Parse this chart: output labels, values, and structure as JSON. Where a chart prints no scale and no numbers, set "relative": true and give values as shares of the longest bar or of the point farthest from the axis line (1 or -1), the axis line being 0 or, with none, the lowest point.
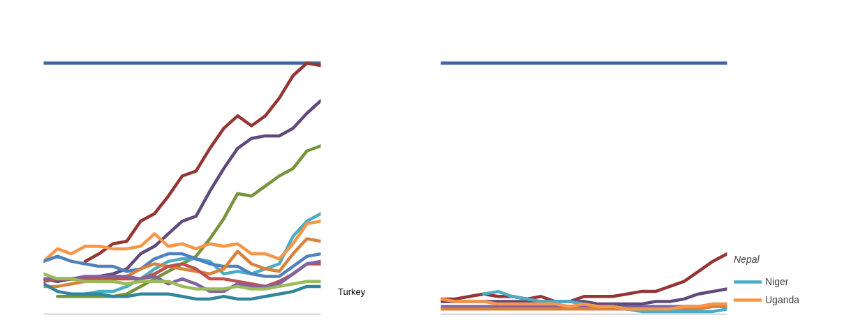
{
  "chart_data": [
    {
      "type": "line",
      "relative": true,
      "categories": [
        null,
        null,
        null,
        null,
        null,
        null,
        null,
        null,
        null,
        null,
        null,
        null,
        null,
        null,
        null,
        null,
        null,
        null,
        null,
        null,
        null
      ],
      "legend": false,
      "annotations": [
        "Turkey"
      ],
      "series": [
        {
          "color": "#3f67a0",
          "values": [
            1,
            1,
            1,
            1,
            1,
            1,
            1,
            1,
            1,
            1,
            1,
            1,
            1,
            1,
            1,
            1,
            1,
            1,
            1,
            1,
            1
          ]
        },
        {
          "color": "#943634",
          "values": [
            null,
            null,
            null,
            0.21,
            0.24,
            0.28,
            0.29,
            0.37,
            0.4,
            0.47,
            0.55,
            0.57,
            0.66,
            0.74,
            0.79,
            0.75,
            0.79,
            0.86,
            0.95,
            1.0,
            0.99
          ]
        },
        {
          "color": "#604a7b",
          "values": [
            0.14,
            0.13,
            0.14,
            0.14,
            0.15,
            0.16,
            0.18,
            0.24,
            0.27,
            0.32,
            0.37,
            0.39,
            0.49,
            0.58,
            0.66,
            0.7,
            0.71,
            0.71,
            0.74,
            0.8,
            0.85
          ]
        },
        {
          "color": "#77933c",
          "values": [
            null,
            0.07,
            0.07,
            0.07,
            0.07,
            0.07,
            0.08,
            0.11,
            0.14,
            0.17,
            0.2,
            0.23,
            0.3,
            0.38,
            0.48,
            0.47,
            0.51,
            0.55,
            0.58,
            0.65,
            0.67
          ]
        },
        {
          "color": "#4bacc6",
          "values": [
            null,
            null,
            null,
            0.08,
            0.09,
            0.09,
            0.11,
            0.14,
            0.18,
            0.21,
            0.22,
            0.22,
            0.21,
            0.16,
            0.17,
            0.16,
            0.18,
            0.2,
            0.31,
            0.37,
            0.4
          ]
        },
        {
          "color": "#f79646",
          "values": [
            0.21,
            0.26,
            0.24,
            0.27,
            0.27,
            0.26,
            0.26,
            0.27,
            0.32,
            0.27,
            0.28,
            0.26,
            0.28,
            0.27,
            0.28,
            0.24,
            0.24,
            0.22,
            0.28,
            0.36,
            0.37
          ]
        },
        {
          "color": "#4f81bd",
          "values": [
            0.21,
            0.23,
            0.21,
            0.2,
            0.19,
            0.19,
            0.17,
            0.18,
            0.22,
            0.24,
            0.24,
            0.22,
            0.2,
            0.19,
            0.19,
            0.16,
            0.15,
            0.15,
            0.19,
            0.23,
            0.24
          ]
        },
        {
          "color": "#d9823b",
          "values": [
            0.11,
            0.11,
            0.12,
            0.13,
            0.13,
            0.14,
            0.15,
            0.18,
            0.2,
            0.19,
            0.18,
            0.17,
            0.16,
            0.18,
            0.25,
            0.2,
            0.18,
            0.17,
            0.24,
            0.3,
            0.29
          ]
        },
        {
          "color": "#c0504d",
          "values": [
            0.13,
            0.14,
            0.14,
            0.14,
            0.14,
            0.14,
            0.14,
            0.14,
            0.16,
            0.19,
            0.2,
            0.18,
            0.14,
            0.14,
            0.13,
            0.12,
            0.11,
            0.13,
            0.16,
            0.2,
            0.2
          ]
        },
        {
          "color": "#8064a2",
          "values": [
            0.14,
            0.14,
            0.14,
            0.15,
            0.15,
            0.15,
            0.15,
            0.14,
            0.15,
            0.12,
            0.14,
            0.12,
            0.09,
            0.09,
            0.12,
            0.11,
            0.11,
            0.12,
            0.16,
            0.2,
            0.21
          ]
        },
        {
          "color": "#9bbb59",
          "values": [
            0.16,
            0.14,
            0.14,
            0.13,
            0.13,
            0.13,
            0.12,
            0.13,
            0.13,
            0.13,
            0.11,
            0.1,
            0.1,
            0.1,
            0.11,
            0.1,
            0.1,
            0.11,
            0.12,
            0.13,
            0.13
          ]
        },
        {
          "color": "#31859c",
          "values": [
            0.12,
            0.09,
            0.08,
            0.08,
            0.08,
            0.07,
            0.07,
            0.08,
            0.08,
            0.08,
            0.07,
            0.06,
            0.06,
            0.07,
            0.06,
            0.06,
            0.07,
            0.08,
            0.09,
            0.11,
            0.11
          ]
        }
      ]
    },
    {
      "type": "line",
      "relative": true,
      "categories": [
        null,
        null,
        null,
        null,
        null,
        null,
        null,
        null,
        null,
        null,
        null,
        null,
        null,
        null,
        null,
        null,
        null,
        null,
        null,
        null,
        null
      ],
      "legend": "right",
      "legend_title": "Nepal",
      "series": [
        {
          "color": "#3f67a0",
          "values": [
            1,
            1,
            1,
            1,
            1,
            1,
            1,
            1,
            1,
            1,
            1,
            1,
            1,
            1,
            1,
            1,
            1,
            1,
            1,
            1,
            1
          ]
        },
        {
          "color": "#8064a2",
          "values": [
            0.03,
            0.03,
            0.03,
            0.03,
            0.03,
            0.03,
            0.03,
            0.03,
            0.03,
            0.03,
            0.03,
            0.03,
            0.03,
            0.03,
            0.03,
            0.03,
            0.03,
            0.03,
            0.03,
            null,
            null
          ]
        },
        {
          "color": "#943634",
          "values": [
            0.06,
            0.06,
            0.07,
            0.08,
            0.07,
            0.07,
            0.06,
            0.07,
            0.05,
            0.05,
            0.07,
            0.07,
            0.07,
            0.08,
            0.09,
            0.09,
            0.11,
            0.13,
            0.17,
            0.21,
            0.24
          ]
        },
        {
          "color": "#604a7b",
          "values": [
            0.05,
            0.05,
            0.05,
            0.05,
            0.05,
            0.05,
            0.05,
            0.05,
            0.05,
            0.05,
            0.05,
            0.04,
            0.04,
            0.04,
            0.04,
            0.05,
            0.05,
            0.06,
            0.08,
            0.09,
            0.1
          ]
        },
        {
          "color": "#d9823b",
          "values": [
            0.02,
            0.02,
            0.02,
            0.02,
            0.02,
            0.02,
            0.02,
            0.02,
            0.02,
            0.02,
            0.02,
            0.02,
            0.02,
            0.02,
            0.02,
            0.02,
            0.02,
            0.02,
            0.02,
            0.03,
            0.03
          ]
        },
        {
          "name": "Niger",
          "color": "#4bacc6",
          "values": [
            null,
            null,
            null,
            0.08,
            0.09,
            0.07,
            0.06,
            0.05,
            0.05,
            0.05,
            0.04,
            0.03,
            0.03,
            0.02,
            0.01,
            0.01,
            0.01,
            0.01,
            0.01,
            0.01,
            0.02
          ]
        },
        {
          "name": "Uganda",
          "color": "#f79646",
          "values": [
            0.06,
            0.05,
            0.05,
            0.05,
            0.04,
            0.04,
            0.04,
            0.04,
            0.04,
            0.03,
            0.04,
            0.03,
            0.03,
            0.02,
            0.02,
            0.02,
            0.02,
            0.03,
            0.03,
            0.04,
            0.04
          ]
        }
      ]
    }
  ]
}
